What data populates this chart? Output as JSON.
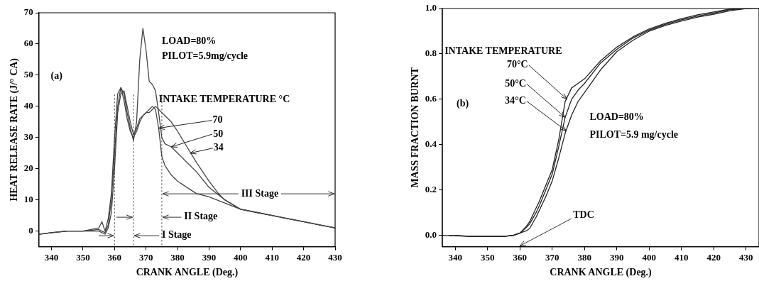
{
  "chart_data": [
    {
      "type": "line",
      "xlabel": "CRANK ANGLE (Deg.)",
      "ylabel": "HEAT RELEASE RATE (J/° CA)",
      "xlim": [
        336,
        430
      ],
      "ylim": [
        -5,
        70
      ],
      "xticks": [
        340,
        350,
        360,
        370,
        380,
        390,
        400,
        410,
        420,
        430
      ],
      "yticks": [
        0,
        10,
        20,
        30,
        40,
        50,
        60,
        70
      ],
      "series": [
        {
          "color": "#444444",
          "x": [
            336,
            340,
            345,
            350,
            355,
            357,
            358,
            359,
            360,
            361,
            362,
            363,
            364,
            365,
            366,
            367,
            368,
            369,
            370,
            371,
            372,
            373,
            374,
            375,
            376,
            378,
            380,
            383,
            386,
            390,
            395,
            400,
            405,
            410,
            415,
            420,
            425,
            430
          ],
          "values": [
            -1,
            -0.5,
            0,
            0,
            0.5,
            -0.5,
            2,
            10,
            25,
            40,
            46,
            42,
            36,
            32,
            30,
            32,
            35,
            37,
            38,
            39,
            40,
            39,
            33,
            24,
            21,
            18,
            16,
            14,
            12,
            11,
            9,
            7,
            6,
            5,
            4,
            3,
            2,
            1
          ]
        },
        {
          "color": "#444444",
          "x": [
            336,
            340,
            345,
            350,
            355,
            356,
            357,
            358,
            359,
            360,
            361,
            362,
            363,
            364,
            365,
            366,
            367,
            368,
            369,
            370,
            371,
            372,
            373,
            374,
            375,
            376,
            378,
            380,
            383,
            386,
            390,
            395,
            400,
            405,
            410,
            415,
            420,
            425,
            430
          ],
          "values": [
            -1,
            -0.5,
            0,
            0,
            1,
            3,
            0,
            4,
            12,
            30,
            44,
            46,
            44,
            38,
            33,
            29,
            35,
            55,
            65,
            58,
            48,
            47,
            45,
            38,
            30,
            28,
            27,
            25,
            22,
            19,
            14,
            10,
            7,
            6,
            5,
            4,
            3,
            2,
            1
          ]
        },
        {
          "color": "#444444",
          "x": [
            336,
            340,
            345,
            350,
            355,
            357,
            358,
            359,
            360,
            361,
            362,
            363,
            364,
            365,
            366,
            367,
            368,
            369,
            370,
            371,
            372,
            373,
            374,
            375,
            376,
            378,
            380,
            383,
            386,
            390,
            393,
            395,
            400,
            405,
            410,
            415,
            420,
            425,
            430
          ],
          "values": [
            -1,
            -0.5,
            0,
            0,
            0,
            -1,
            1,
            6,
            20,
            38,
            44,
            45,
            40,
            35,
            31,
            33,
            36,
            37,
            38,
            38,
            39,
            40,
            39,
            38,
            37,
            35,
            32,
            27,
            22,
            16,
            12,
            10,
            7,
            6,
            5,
            4,
            3,
            2,
            1
          ]
        }
      ],
      "ref_lines": [
        {
          "axis": "x",
          "value": 360,
          "line_style": "dotted"
        },
        {
          "axis": "x",
          "value": 366,
          "line_style": "dotted"
        },
        {
          "axis": "x",
          "value": 375,
          "line_style": "dotted"
        }
      ],
      "annotations": [
        "(a)",
        "LOAD=80%",
        "PILOT=5.9mg/cycle",
        "INTAKE TEMPERATURE °C",
        "I Stage",
        "II Stage",
        {
          "text": "III Stage",
          "x": 375,
          "y": 12
        },
        {
          "text": "70",
          "x": 374,
          "y": 33
        },
        {
          "text": "50",
          "x": 378,
          "y": 27
        },
        {
          "text": "34",
          "x": 384,
          "y": 25
        }
      ]
    },
    {
      "type": "line",
      "xlabel": "CRANK ANGLE (Deg.)",
      "ylabel": "MASS FRACTION BURNT",
      "xlim": [
        336,
        434
      ],
      "ylim": [
        -0.05,
        1.0
      ],
      "xticks": [
        340,
        350,
        360,
        370,
        380,
        390,
        400,
        410,
        420,
        430
      ],
      "yticks": [
        {
          "value": 0,
          "label": "0.0"
        },
        0.2,
        0.4,
        0.6,
        0.8,
        {
          "value": 1,
          "label": "1.0"
        }
      ],
      "series": [
        {
          "color": "#222222",
          "x": [
            336,
            345,
            355,
            358,
            360,
            362,
            363,
            365,
            366,
            368,
            370,
            372,
            374,
            376,
            378,
            380,
            385,
            390,
            395,
            400,
            405,
            410,
            415,
            420,
            425,
            430
          ],
          "values": [
            0,
            -0.005,
            -0.005,
            0,
            0.01,
            0.04,
            0.06,
            0.12,
            0.15,
            0.22,
            0.29,
            0.42,
            0.59,
            0.65,
            0.67,
            0.69,
            0.77,
            0.83,
            0.875,
            0.91,
            0.935,
            0.955,
            0.972,
            0.985,
            0.997,
            1
          ]
        },
        {
          "color": "#222222",
          "x": [
            338,
            345,
            355,
            358,
            360,
            362,
            363,
            365,
            366,
            368,
            370,
            372,
            374,
            376,
            378,
            380,
            385,
            390,
            395,
            400,
            405,
            410,
            415,
            420,
            425,
            430,
            432
          ],
          "values": [
            0,
            -0.005,
            -0.005,
            0,
            0.01,
            0.035,
            0.05,
            0.1,
            0.13,
            0.2,
            0.27,
            0.39,
            0.52,
            0.6,
            0.64,
            0.67,
            0.76,
            0.82,
            0.87,
            0.905,
            0.93,
            0.95,
            0.967,
            0.98,
            0.995,
            1,
            1
          ]
        },
        {
          "color": "#222222",
          "x": [
            340,
            345,
            355,
            358,
            360,
            362,
            363,
            365,
            366,
            368,
            370,
            372,
            374,
            376,
            378,
            380,
            385,
            390,
            395,
            400,
            405,
            410,
            415,
            420,
            425,
            430,
            434
          ],
          "values": [
            0,
            -0.005,
            -0.005,
            0,
            0.01,
            0.02,
            0.03,
            0.08,
            0.11,
            0.17,
            0.24,
            0.34,
            0.45,
            0.53,
            0.59,
            0.63,
            0.73,
            0.81,
            0.86,
            0.9,
            0.925,
            0.945,
            0.962,
            0.975,
            0.99,
            1,
            1
          ]
        }
      ],
      "annotations": [
        "(b)",
        "LOAD=80%",
        "PILOT=5.9 mg/cycle",
        "INTAKE TEMPERATURE",
        "TDC",
        {
          "text": "70°C",
          "x": 374.6,
          "y": 0.6
        },
        {
          "text": "50°C",
          "x": 374,
          "y": 0.52
        },
        {
          "text": "34°C",
          "x": 374.4,
          "y": 0.46
        }
      ]
    }
  ]
}
